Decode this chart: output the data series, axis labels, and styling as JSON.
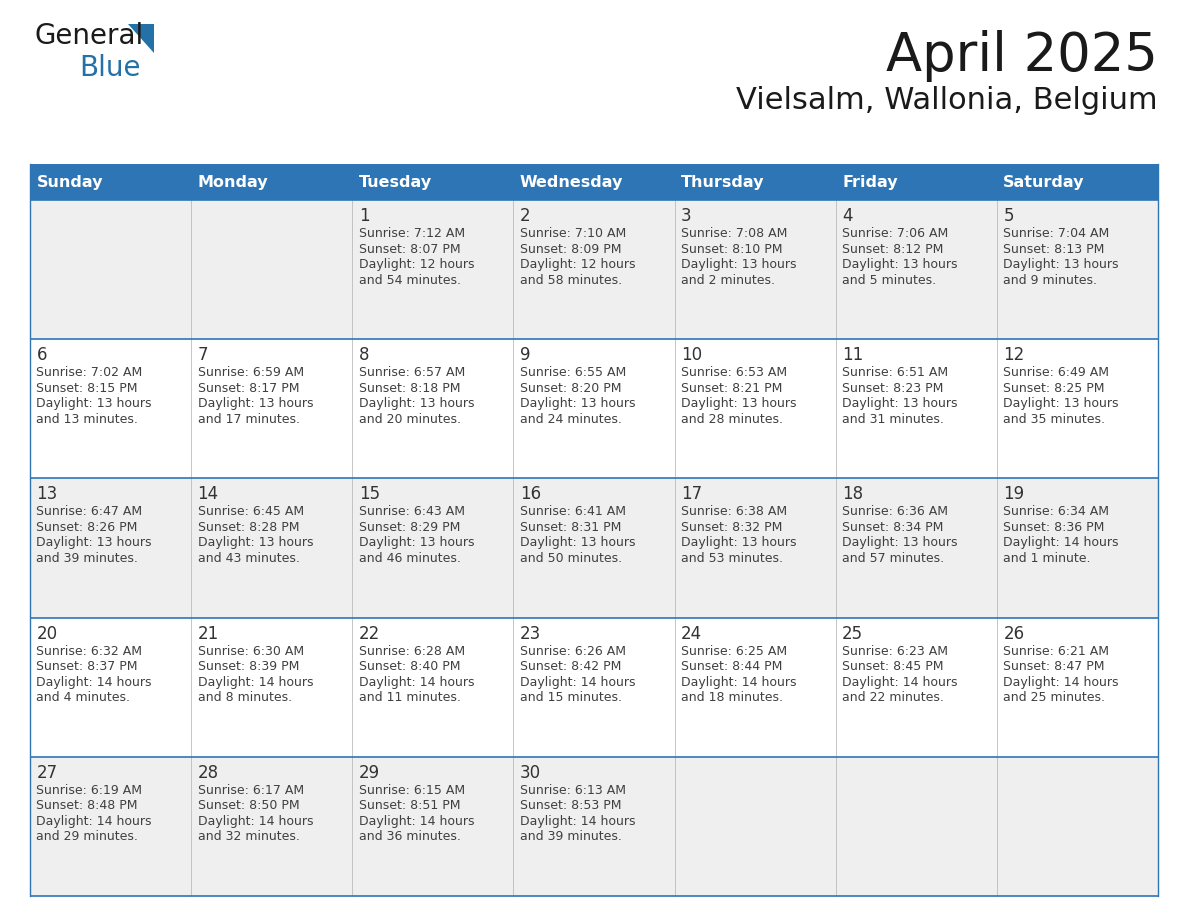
{
  "title": "April 2025",
  "subtitle": "Vielsalm, Wallonia, Belgium",
  "header_color": "#2E75B6",
  "header_text_color": "#FFFFFF",
  "days_of_week": [
    "Sunday",
    "Monday",
    "Tuesday",
    "Wednesday",
    "Thursday",
    "Friday",
    "Saturday"
  ],
  "row_colors": [
    "#EFEFEF",
    "#FFFFFF"
  ],
  "border_color": "#2E75B6",
  "row_border_color": "#4472C4",
  "text_color": "#404040",
  "day_number_color": "#333333",
  "calendar": [
    [
      {
        "day": "",
        "sunrise": "",
        "sunset": "",
        "daylight": ""
      },
      {
        "day": "",
        "sunrise": "",
        "sunset": "",
        "daylight": ""
      },
      {
        "day": "1",
        "sunrise": "7:12 AM",
        "sunset": "8:07 PM",
        "daylight": "12 hours",
        "daylight2": "and 54 minutes."
      },
      {
        "day": "2",
        "sunrise": "7:10 AM",
        "sunset": "8:09 PM",
        "daylight": "12 hours",
        "daylight2": "and 58 minutes."
      },
      {
        "day": "3",
        "sunrise": "7:08 AM",
        "sunset": "8:10 PM",
        "daylight": "13 hours",
        "daylight2": "and 2 minutes."
      },
      {
        "day": "4",
        "sunrise": "7:06 AM",
        "sunset": "8:12 PM",
        "daylight": "13 hours",
        "daylight2": "and 5 minutes."
      },
      {
        "day": "5",
        "sunrise": "7:04 AM",
        "sunset": "8:13 PM",
        "daylight": "13 hours",
        "daylight2": "and 9 minutes."
      }
    ],
    [
      {
        "day": "6",
        "sunrise": "7:02 AM",
        "sunset": "8:15 PM",
        "daylight": "13 hours",
        "daylight2": "and 13 minutes."
      },
      {
        "day": "7",
        "sunrise": "6:59 AM",
        "sunset": "8:17 PM",
        "daylight": "13 hours",
        "daylight2": "and 17 minutes."
      },
      {
        "day": "8",
        "sunrise": "6:57 AM",
        "sunset": "8:18 PM",
        "daylight": "13 hours",
        "daylight2": "and 20 minutes."
      },
      {
        "day": "9",
        "sunrise": "6:55 AM",
        "sunset": "8:20 PM",
        "daylight": "13 hours",
        "daylight2": "and 24 minutes."
      },
      {
        "day": "10",
        "sunrise": "6:53 AM",
        "sunset": "8:21 PM",
        "daylight": "13 hours",
        "daylight2": "and 28 minutes."
      },
      {
        "day": "11",
        "sunrise": "6:51 AM",
        "sunset": "8:23 PM",
        "daylight": "13 hours",
        "daylight2": "and 31 minutes."
      },
      {
        "day": "12",
        "sunrise": "6:49 AM",
        "sunset": "8:25 PM",
        "daylight": "13 hours",
        "daylight2": "and 35 minutes."
      }
    ],
    [
      {
        "day": "13",
        "sunrise": "6:47 AM",
        "sunset": "8:26 PM",
        "daylight": "13 hours",
        "daylight2": "and 39 minutes."
      },
      {
        "day": "14",
        "sunrise": "6:45 AM",
        "sunset": "8:28 PM",
        "daylight": "13 hours",
        "daylight2": "and 43 minutes."
      },
      {
        "day": "15",
        "sunrise": "6:43 AM",
        "sunset": "8:29 PM",
        "daylight": "13 hours",
        "daylight2": "and 46 minutes."
      },
      {
        "day": "16",
        "sunrise": "6:41 AM",
        "sunset": "8:31 PM",
        "daylight": "13 hours",
        "daylight2": "and 50 minutes."
      },
      {
        "day": "17",
        "sunrise": "6:38 AM",
        "sunset": "8:32 PM",
        "daylight": "13 hours",
        "daylight2": "and 53 minutes."
      },
      {
        "day": "18",
        "sunrise": "6:36 AM",
        "sunset": "8:34 PM",
        "daylight": "13 hours",
        "daylight2": "and 57 minutes."
      },
      {
        "day": "19",
        "sunrise": "6:34 AM",
        "sunset": "8:36 PM",
        "daylight": "14 hours",
        "daylight2": "and 1 minute."
      }
    ],
    [
      {
        "day": "20",
        "sunrise": "6:32 AM",
        "sunset": "8:37 PM",
        "daylight": "14 hours",
        "daylight2": "and 4 minutes."
      },
      {
        "day": "21",
        "sunrise": "6:30 AM",
        "sunset": "8:39 PM",
        "daylight": "14 hours",
        "daylight2": "and 8 minutes."
      },
      {
        "day": "22",
        "sunrise": "6:28 AM",
        "sunset": "8:40 PM",
        "daylight": "14 hours",
        "daylight2": "and 11 minutes."
      },
      {
        "day": "23",
        "sunrise": "6:26 AM",
        "sunset": "8:42 PM",
        "daylight": "14 hours",
        "daylight2": "and 15 minutes."
      },
      {
        "day": "24",
        "sunrise": "6:25 AM",
        "sunset": "8:44 PM",
        "daylight": "14 hours",
        "daylight2": "and 18 minutes."
      },
      {
        "day": "25",
        "sunrise": "6:23 AM",
        "sunset": "8:45 PM",
        "daylight": "14 hours",
        "daylight2": "and 22 minutes."
      },
      {
        "day": "26",
        "sunrise": "6:21 AM",
        "sunset": "8:47 PM",
        "daylight": "14 hours",
        "daylight2": "and 25 minutes."
      }
    ],
    [
      {
        "day": "27",
        "sunrise": "6:19 AM",
        "sunset": "8:48 PM",
        "daylight": "14 hours",
        "daylight2": "and 29 minutes."
      },
      {
        "day": "28",
        "sunrise": "6:17 AM",
        "sunset": "8:50 PM",
        "daylight": "14 hours",
        "daylight2": "and 32 minutes."
      },
      {
        "day": "29",
        "sunrise": "6:15 AM",
        "sunset": "8:51 PM",
        "daylight": "14 hours",
        "daylight2": "and 36 minutes."
      },
      {
        "day": "30",
        "sunrise": "6:13 AM",
        "sunset": "8:53 PM",
        "daylight": "14 hours",
        "daylight2": "and 39 minutes."
      },
      {
        "day": "",
        "sunrise": "",
        "sunset": "",
        "daylight": "",
        "daylight2": ""
      },
      {
        "day": "",
        "sunrise": "",
        "sunset": "",
        "daylight": "",
        "daylight2": ""
      },
      {
        "day": "",
        "sunrise": "",
        "sunset": "",
        "daylight": "",
        "daylight2": ""
      }
    ]
  ],
  "logo_color_general": "#1a1a1a",
  "logo_color_blue": "#2471A8",
  "logo_triangle_color": "#2471A8",
  "title_fontsize": 38,
  "subtitle_fontsize": 22,
  "header_fontsize": 11.5,
  "day_num_fontsize": 12,
  "cell_text_fontsize": 9.0
}
